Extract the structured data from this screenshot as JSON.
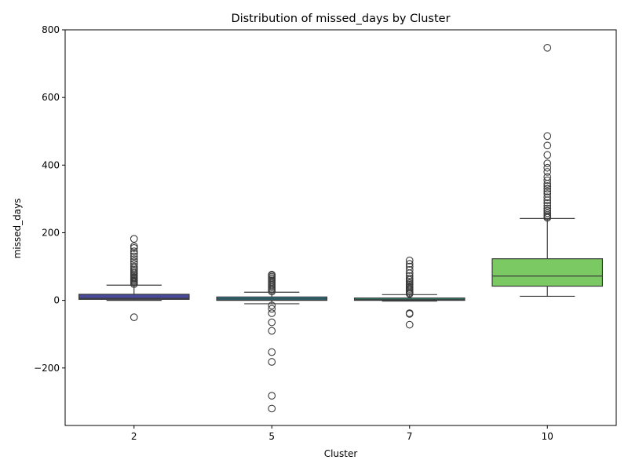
{
  "chart_data": {
    "type": "box",
    "title": "Distribution of missed_days by Cluster",
    "xlabel": "Cluster",
    "ylabel": "missed_days",
    "ylim": [
      -370,
      800
    ],
    "yticks": [
      -200,
      0,
      200,
      400,
      600,
      800
    ],
    "ytick_labels": [
      "−200",
      "0",
      "200",
      "400",
      "600",
      "800"
    ],
    "grid": false,
    "legend": "none",
    "categories": [
      "2",
      "5",
      "7",
      "10"
    ],
    "boxes": [
      {
        "category": "2",
        "color": "#4a4a9c",
        "whisker_low": 0,
        "q1": 3,
        "median": 6,
        "q3": 18,
        "whisker_high": 45,
        "outliers": [
          -50,
          48,
          52,
          55,
          58,
          62,
          65,
          68,
          72,
          76,
          80,
          85,
          90,
          95,
          100,
          108,
          115,
          122,
          130,
          138,
          145,
          155,
          160,
          182
        ]
      },
      {
        "category": "5",
        "color": "#2a7f8e",
        "whisker_low": -10,
        "q1": 0,
        "median": 4,
        "q3": 10,
        "whisker_high": 24,
        "outliers": [
          -320,
          -282,
          -182,
          -153,
          -90,
          -65,
          -38,
          -25,
          -15,
          26,
          30,
          34,
          38,
          42,
          46,
          50,
          54,
          58,
          62,
          66,
          70,
          74,
          76
        ]
      },
      {
        "category": "7",
        "color": "#33b18e",
        "whisker_low": -2,
        "q1": 0,
        "median": 3,
        "q3": 7,
        "whisker_high": 17,
        "outliers": [
          -72,
          -40,
          -38,
          19,
          22,
          26,
          30,
          34,
          38,
          42,
          46,
          50,
          55,
          60,
          65,
          72,
          80,
          90,
          100,
          108,
          118
        ]
      },
      {
        "category": "10",
        "color": "#7bc962",
        "whisker_low": 12,
        "q1": 42,
        "median": 72,
        "q3": 123,
        "whisker_high": 242,
        "outliers": [
          244,
          248,
          252,
          258,
          265,
          272,
          280,
          288,
          296,
          305,
          315,
          322,
          330,
          338,
          345,
          355,
          365,
          380,
          392,
          405,
          430,
          458,
          486,
          747
        ]
      }
    ]
  }
}
